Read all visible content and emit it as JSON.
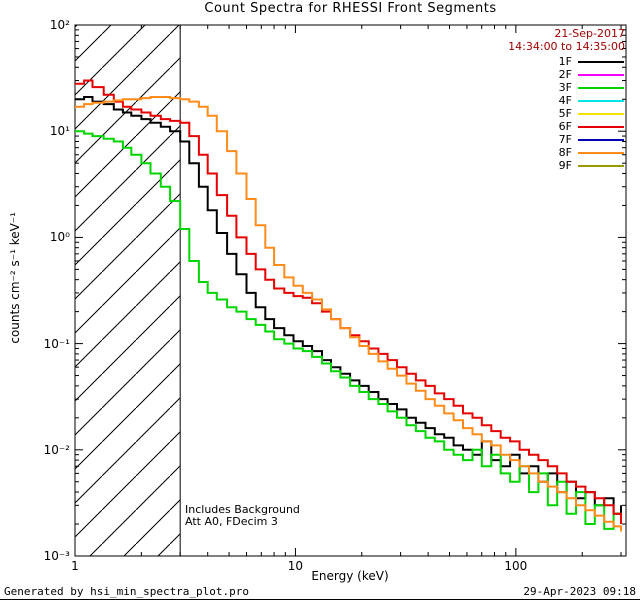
{
  "chart": {
    "title": "Count Spectra for RHESSI Front Segments",
    "date": "21-Sep-2017",
    "time_range": "14:34:00 to 14:35:00",
    "xlabel": "Energy (keV)",
    "ylabel": "counts cm⁻² s⁻¹ keV⁻¹",
    "annotations": [
      "Includes Background",
      "Att A0, FDecim 3"
    ],
    "date_color": "#a00000"
  },
  "footer": {
    "generated_by": "Generated by hsi_min_spectra_plot.pro",
    "timestamp": "29-Apr-2023 09:18"
  },
  "chart_data": {
    "type": "line",
    "title": "Count Spectra for RHESSI Front Segments",
    "xlabel": "Energy (keV)",
    "ylabel": "counts cm^-2 s^-1 keV^-1",
    "x_scale": "log",
    "y_scale": "log",
    "xlim": [
      1,
      316
    ],
    "ylim": [
      0.001,
      100
    ],
    "x_ticks": [
      1,
      10,
      100
    ],
    "x_tick_labels": [
      "1",
      "10",
      "100"
    ],
    "y_tick_exponents": [
      2,
      1,
      0,
      -1,
      -2,
      -3
    ],
    "y_tick_labels": [
      "10²",
      "10¹",
      "10⁰",
      "10⁻¹",
      "10⁻²",
      "10⁻³"
    ],
    "grid": false,
    "legend_position": "inside-top-right",
    "hatched_region": {
      "x_start": 1,
      "x_end": 3,
      "style": "diagonal-hatch"
    },
    "legend": [
      {
        "label": "1F",
        "color": "#000000",
        "plotted": true
      },
      {
        "label": "2F",
        "color": "#ff00ff",
        "plotted": false
      },
      {
        "label": "3F",
        "color": "#00d500",
        "plotted": true
      },
      {
        "label": "4F",
        "color": "#00e5e5",
        "plotted": false
      },
      {
        "label": "5F",
        "color": "#f2e200",
        "plotted": false
      },
      {
        "label": "6F",
        "color": "#e60000",
        "plotted": true
      },
      {
        "label": "7F",
        "color": "#0000b4",
        "plotted": false
      },
      {
        "label": "8F",
        "color": "#ff8c1a",
        "plotted": true
      },
      {
        "label": "9F",
        "color": "#9a9a00",
        "plotted": false
      }
    ],
    "series": [
      {
        "name": "1F",
        "color": "#000000",
        "points": [
          [
            1.0,
            20
          ],
          [
            1.1,
            21
          ],
          [
            1.2,
            19
          ],
          [
            1.35,
            18
          ],
          [
            1.5,
            16
          ],
          [
            1.65,
            15
          ],
          [
            1.8,
            14
          ],
          [
            2.0,
            13
          ],
          [
            2.2,
            12
          ],
          [
            2.45,
            11
          ],
          [
            2.7,
            10
          ],
          [
            3.0,
            8
          ],
          [
            3.3,
            5
          ],
          [
            3.65,
            3
          ],
          [
            4.0,
            1.8
          ],
          [
            4.4,
            1.1
          ],
          [
            4.9,
            0.7
          ],
          [
            5.4,
            0.45
          ],
          [
            6.0,
            0.3
          ],
          [
            6.6,
            0.22
          ],
          [
            7.3,
            0.17
          ],
          [
            8.0,
            0.14
          ],
          [
            8.9,
            0.12
          ],
          [
            9.8,
            0.105
          ],
          [
            10.8,
            0.095
          ],
          [
            11.9,
            0.085
          ],
          [
            13.2,
            0.07
          ],
          [
            14.5,
            0.06
          ],
          [
            16.0,
            0.052
          ],
          [
            17.7,
            0.045
          ],
          [
            19.5,
            0.04
          ],
          [
            21.5,
            0.035
          ],
          [
            23.8,
            0.03
          ],
          [
            26.2,
            0.027
          ],
          [
            28.9,
            0.024
          ],
          [
            31.9,
            0.02
          ],
          [
            35.2,
            0.018
          ],
          [
            38.9,
            0.016
          ],
          [
            42.9,
            0.014
          ],
          [
            47.3,
            0.013
          ],
          [
            52.2,
            0.011
          ],
          [
            57.6,
            0.01
          ],
          [
            63.6,
            0.009
          ],
          [
            70.1,
            0.012
          ],
          [
            77.4,
            0.008
          ],
          [
            85.4,
            0.007
          ],
          [
            94.2,
            0.009
          ],
          [
            104,
            0.006
          ],
          [
            114.7,
            0.007
          ],
          [
            126.6,
            0.005
          ],
          [
            139.6,
            0.006
          ],
          [
            154,
            0.004
          ],
          [
            169.9,
            0.005
          ],
          [
            187.5,
            0.0035
          ],
          [
            206.8,
            0.004
          ],
          [
            228.2,
            0.003
          ],
          [
            251.7,
            0.0035
          ],
          [
            277.7,
            0.0025
          ],
          [
            300,
            0.003
          ]
        ]
      },
      {
        "name": "3F",
        "color": "#00d500",
        "points": [
          [
            1.0,
            10
          ],
          [
            1.1,
            9.5
          ],
          [
            1.2,
            9
          ],
          [
            1.35,
            8.5
          ],
          [
            1.5,
            8
          ],
          [
            1.65,
            7
          ],
          [
            1.8,
            6
          ],
          [
            2.0,
            5
          ],
          [
            2.2,
            4
          ],
          [
            2.45,
            3
          ],
          [
            2.7,
            2.2
          ],
          [
            3.0,
            1.2
          ],
          [
            3.3,
            0.6
          ],
          [
            3.65,
            0.38
          ],
          [
            4.0,
            0.3
          ],
          [
            4.4,
            0.26
          ],
          [
            4.9,
            0.22
          ],
          [
            5.4,
            0.2
          ],
          [
            6.0,
            0.17
          ],
          [
            6.6,
            0.15
          ],
          [
            7.3,
            0.13
          ],
          [
            8.0,
            0.11
          ],
          [
            8.9,
            0.1
          ],
          [
            9.8,
            0.09
          ],
          [
            10.8,
            0.085
          ],
          [
            11.9,
            0.075
          ],
          [
            13.2,
            0.065
          ],
          [
            14.5,
            0.055
          ],
          [
            16.0,
            0.048
          ],
          [
            17.7,
            0.04
          ],
          [
            19.5,
            0.035
          ],
          [
            21.5,
            0.03
          ],
          [
            23.8,
            0.027
          ],
          [
            26.2,
            0.023
          ],
          [
            28.9,
            0.02
          ],
          [
            31.9,
            0.017
          ],
          [
            35.2,
            0.015
          ],
          [
            38.9,
            0.013
          ],
          [
            42.9,
            0.012
          ],
          [
            47.3,
            0.01
          ],
          [
            52.2,
            0.009
          ],
          [
            57.6,
            0.008
          ],
          [
            63.6,
            0.01
          ],
          [
            70.1,
            0.007
          ],
          [
            77.4,
            0.009
          ],
          [
            85.4,
            0.006
          ],
          [
            94.2,
            0.005
          ],
          [
            104,
            0.007
          ],
          [
            114.7,
            0.004
          ],
          [
            126.6,
            0.006
          ],
          [
            139.6,
            0.003
          ],
          [
            154,
            0.005
          ],
          [
            169.9,
            0.0025
          ],
          [
            187.5,
            0.004
          ],
          [
            206.8,
            0.002
          ],
          [
            228.2,
            0.003
          ],
          [
            251.7,
            0.0018
          ],
          [
            277.7,
            0.0025
          ],
          [
            300,
            0.002
          ]
        ]
      },
      {
        "name": "6F",
        "color": "#e60000",
        "points": [
          [
            1.0,
            28
          ],
          [
            1.1,
            30
          ],
          [
            1.2,
            26
          ],
          [
            1.35,
            22
          ],
          [
            1.5,
            19
          ],
          [
            1.65,
            17
          ],
          [
            1.8,
            16
          ],
          [
            2.0,
            15
          ],
          [
            2.2,
            14
          ],
          [
            2.45,
            13
          ],
          [
            2.7,
            12.5
          ],
          [
            3.0,
            12
          ],
          [
            3.3,
            9
          ],
          [
            3.65,
            6
          ],
          [
            4.0,
            4
          ],
          [
            4.4,
            2.5
          ],
          [
            4.9,
            1.6
          ],
          [
            5.4,
            1.0
          ],
          [
            6.0,
            0.7
          ],
          [
            6.6,
            0.5
          ],
          [
            7.3,
            0.4
          ],
          [
            8.0,
            0.33
          ],
          [
            8.9,
            0.3
          ],
          [
            9.8,
            0.28
          ],
          [
            10.8,
            0.27
          ],
          [
            11.9,
            0.24
          ],
          [
            13.2,
            0.2
          ],
          [
            14.5,
            0.17
          ],
          [
            16.0,
            0.14
          ],
          [
            17.7,
            0.12
          ],
          [
            19.5,
            0.105
          ],
          [
            21.5,
            0.09
          ],
          [
            23.8,
            0.08
          ],
          [
            26.2,
            0.07
          ],
          [
            28.9,
            0.06
          ],
          [
            31.9,
            0.052
          ],
          [
            35.2,
            0.045
          ],
          [
            38.9,
            0.04
          ],
          [
            42.9,
            0.034
          ],
          [
            47.3,
            0.03
          ],
          [
            52.2,
            0.026
          ],
          [
            57.6,
            0.022
          ],
          [
            63.6,
            0.02
          ],
          [
            70.1,
            0.017
          ],
          [
            77.4,
            0.015
          ],
          [
            85.4,
            0.013
          ],
          [
            94.2,
            0.012
          ],
          [
            104,
            0.01
          ],
          [
            114.7,
            0.009
          ],
          [
            126.6,
            0.008
          ],
          [
            139.6,
            0.007
          ],
          [
            154,
            0.006
          ],
          [
            169.9,
            0.005
          ],
          [
            187.5,
            0.0045
          ],
          [
            206.8,
            0.004
          ],
          [
            228.2,
            0.0035
          ],
          [
            251.7,
            0.003
          ],
          [
            277.7,
            0.0025
          ],
          [
            300,
            0.002
          ]
        ]
      },
      {
        "name": "8F",
        "color": "#ff8c1a",
        "points": [
          [
            1.0,
            17
          ],
          [
            1.1,
            18
          ],
          [
            1.2,
            18.5
          ],
          [
            1.35,
            19
          ],
          [
            1.5,
            19.5
          ],
          [
            1.65,
            20
          ],
          [
            1.8,
            20
          ],
          [
            2.0,
            20.5
          ],
          [
            2.2,
            21
          ],
          [
            2.45,
            21
          ],
          [
            2.7,
            20.5
          ],
          [
            3.0,
            20
          ],
          [
            3.3,
            19
          ],
          [
            3.65,
            17
          ],
          [
            4.0,
            14
          ],
          [
            4.4,
            10
          ],
          [
            4.9,
            6.5
          ],
          [
            5.4,
            4
          ],
          [
            6.0,
            2.3
          ],
          [
            6.6,
            1.3
          ],
          [
            7.3,
            0.8
          ],
          [
            8.0,
            0.55
          ],
          [
            8.9,
            0.42
          ],
          [
            9.8,
            0.35
          ],
          [
            10.8,
            0.3
          ],
          [
            11.9,
            0.26
          ],
          [
            13.2,
            0.21
          ],
          [
            14.5,
            0.17
          ],
          [
            16.0,
            0.14
          ],
          [
            17.7,
            0.115
          ],
          [
            19.5,
            0.095
          ],
          [
            21.5,
            0.08
          ],
          [
            23.8,
            0.068
          ],
          [
            26.2,
            0.058
          ],
          [
            28.9,
            0.05
          ],
          [
            31.9,
            0.042
          ],
          [
            35.2,
            0.036
          ],
          [
            38.9,
            0.03
          ],
          [
            42.9,
            0.026
          ],
          [
            47.3,
            0.022
          ],
          [
            52.2,
            0.019
          ],
          [
            57.6,
            0.016
          ],
          [
            63.6,
            0.014
          ],
          [
            70.1,
            0.012
          ],
          [
            77.4,
            0.011
          ],
          [
            85.4,
            0.009
          ],
          [
            94.2,
            0.008
          ],
          [
            104,
            0.007
          ],
          [
            114.7,
            0.006
          ],
          [
            126.6,
            0.005
          ],
          [
            139.6,
            0.0045
          ],
          [
            154,
            0.004
          ],
          [
            169.9,
            0.0035
          ],
          [
            187.5,
            0.003
          ],
          [
            206.8,
            0.0027
          ],
          [
            228.2,
            0.0024
          ],
          [
            251.7,
            0.0021
          ],
          [
            277.7,
            0.0019
          ],
          [
            300,
            0.0017
          ]
        ]
      }
    ]
  }
}
